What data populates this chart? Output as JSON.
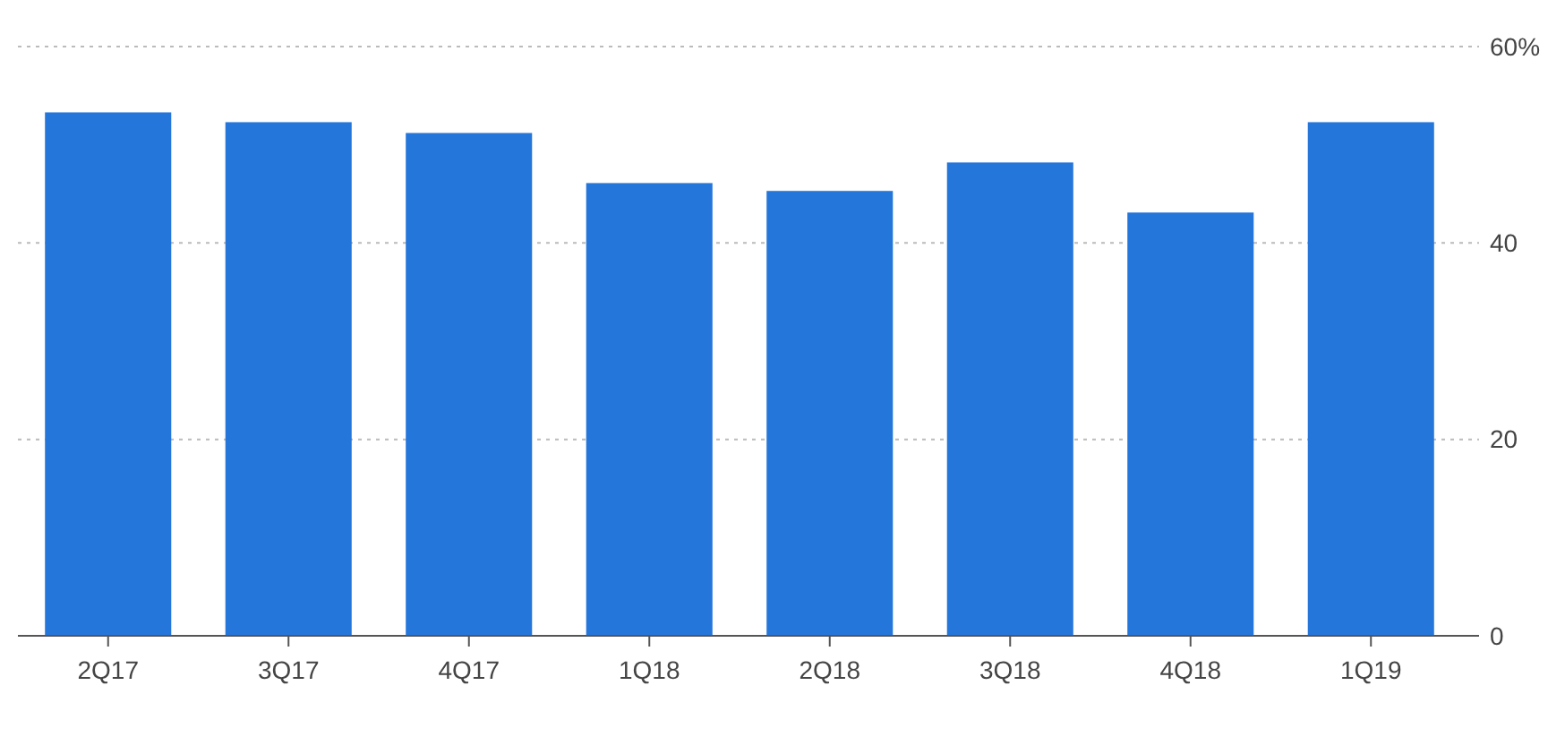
{
  "chart_data": {
    "type": "bar",
    "categories": [
      "2Q17",
      "3Q17",
      "4Q17",
      "1Q18",
      "2Q18",
      "3Q18",
      "4Q18",
      "1Q19"
    ],
    "values": [
      53.3,
      52.3,
      51.2,
      46.1,
      45.3,
      48.2,
      43.1,
      52.3
    ],
    "color": "#2476db",
    "ylim": [
      0,
      60
    ],
    "yticks": [
      0,
      20,
      40,
      {
        "value": 60,
        "label": "60%"
      }
    ],
    "grid": "y"
  }
}
